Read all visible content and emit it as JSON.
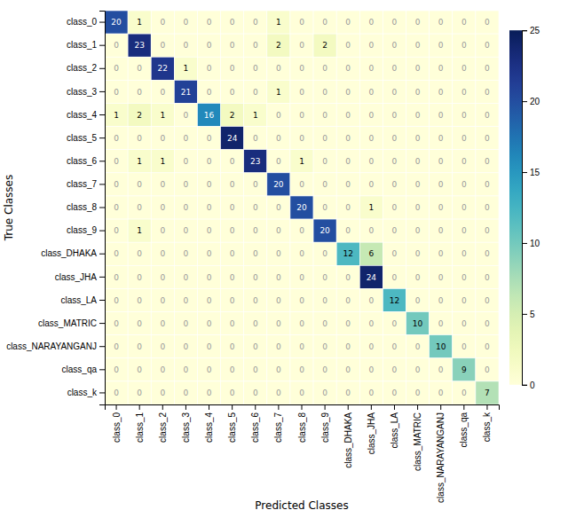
{
  "chart_data": {
    "type": "heatmap",
    "xlabel": "Predicted Classes",
    "ylabel": "True Classes",
    "categories": [
      "class_0",
      "class_1",
      "class_2",
      "class_3",
      "class_4",
      "class_5",
      "class_6",
      "class_7",
      "class_8",
      "class_9",
      "class_DHAKA",
      "class_JHA",
      "class_LA",
      "class_MATRIC",
      "class_NARAYANGANJ",
      "class_qa",
      "class_k"
    ],
    "values": [
      [
        20,
        1,
        0,
        0,
        0,
        0,
        0,
        1,
        0,
        0,
        0,
        0,
        0,
        0,
        0,
        0,
        0
      ],
      [
        0,
        23,
        0,
        0,
        0,
        0,
        0,
        2,
        0,
        2,
        0,
        0,
        0,
        0,
        0,
        0,
        0
      ],
      [
        0,
        0,
        22,
        1,
        0,
        0,
        0,
        0,
        0,
        0,
        0,
        0,
        0,
        0,
        0,
        0,
        0
      ],
      [
        0,
        0,
        0,
        21,
        0,
        0,
        0,
        1,
        0,
        0,
        0,
        0,
        0,
        0,
        0,
        0,
        0
      ],
      [
        1,
        2,
        1,
        0,
        16,
        2,
        1,
        0,
        0,
        0,
        0,
        0,
        0,
        0,
        0,
        0,
        0
      ],
      [
        0,
        0,
        0,
        0,
        0,
        24,
        0,
        0,
        0,
        0,
        0,
        0,
        0,
        0,
        0,
        0,
        0
      ],
      [
        0,
        1,
        1,
        0,
        0,
        0,
        23,
        0,
        1,
        0,
        0,
        0,
        0,
        0,
        0,
        0,
        0
      ],
      [
        0,
        0,
        0,
        0,
        0,
        0,
        0,
        20,
        0,
        0,
        0,
        0,
        0,
        0,
        0,
        0,
        0
      ],
      [
        0,
        0,
        0,
        0,
        0,
        0,
        0,
        0,
        20,
        0,
        0,
        1,
        0,
        0,
        0,
        0,
        0
      ],
      [
        0,
        1,
        0,
        0,
        0,
        0,
        0,
        0,
        0,
        20,
        0,
        0,
        0,
        0,
        0,
        0,
        0
      ],
      [
        0,
        0,
        0,
        0,
        0,
        0,
        0,
        0,
        0,
        0,
        12,
        6,
        0,
        0,
        0,
        0,
        0
      ],
      [
        0,
        0,
        0,
        0,
        0,
        0,
        0,
        0,
        0,
        0,
        0,
        24,
        0,
        0,
        0,
        0,
        0
      ],
      [
        0,
        0,
        0,
        0,
        0,
        0,
        0,
        0,
        0,
        0,
        0,
        0,
        12,
        0,
        0,
        0,
        0
      ],
      [
        0,
        0,
        0,
        0,
        0,
        0,
        0,
        0,
        0,
        0,
        0,
        0,
        0,
        10,
        0,
        0,
        0
      ],
      [
        0,
        0,
        0,
        0,
        0,
        0,
        0,
        0,
        0,
        0,
        0,
        0,
        0,
        0,
        10,
        0,
        0
      ],
      [
        0,
        0,
        0,
        0,
        0,
        0,
        0,
        0,
        0,
        0,
        0,
        0,
        0,
        0,
        0,
        9,
        0
      ],
      [
        0,
        0,
        0,
        0,
        0,
        0,
        0,
        0,
        0,
        0,
        0,
        0,
        0,
        0,
        0,
        0,
        7
      ]
    ],
    "data_labels": true,
    "colorbar_range": [
      0,
      25
    ],
    "colorbar_ticks": [
      0,
      5,
      10,
      15,
      20,
      25
    ]
  }
}
